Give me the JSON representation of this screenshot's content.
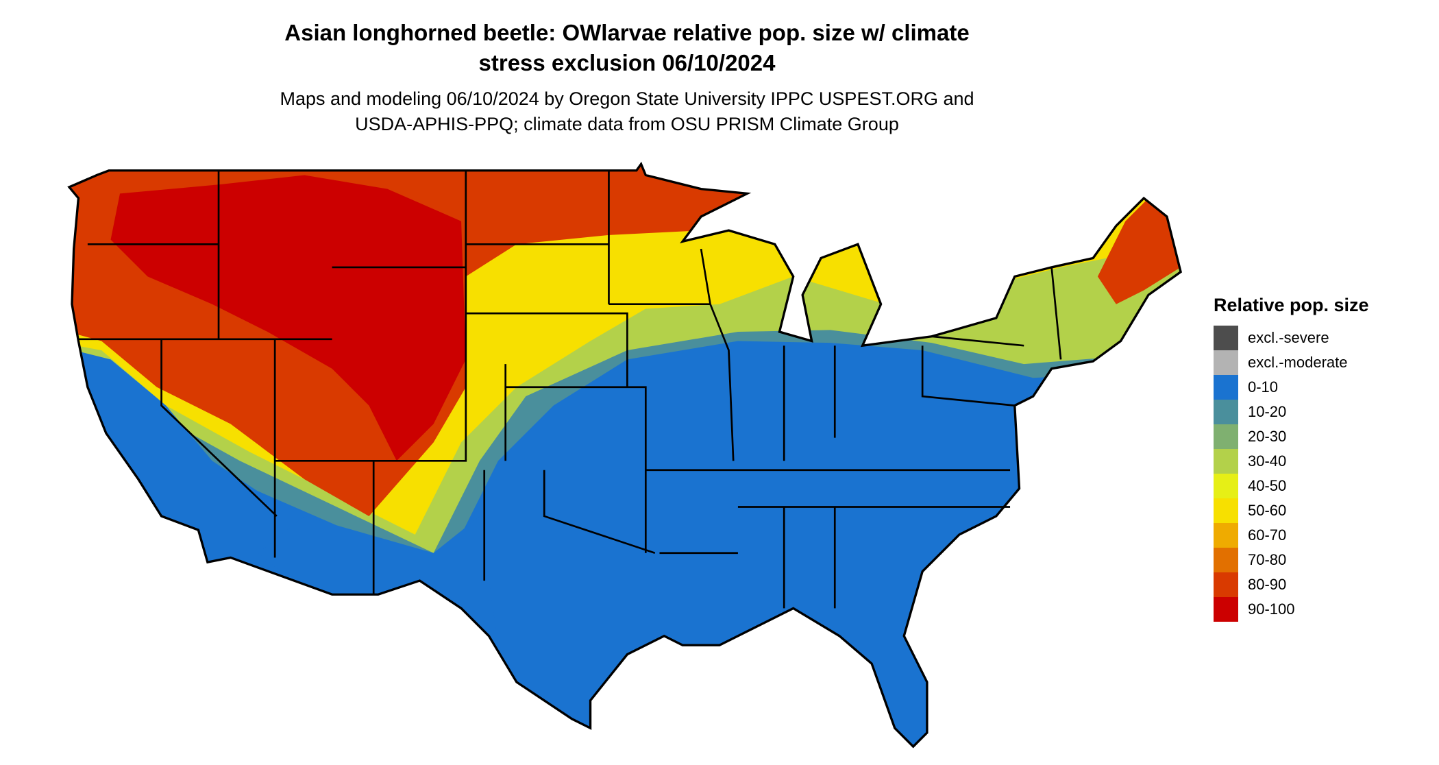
{
  "title": {
    "line1": "Asian longhorned beetle: OWlarvae relative pop. size w/ climate",
    "line2": "stress exclusion 06/10/2024"
  },
  "subtitle": {
    "line1": "Maps and modeling 06/10/2024 by Oregon State University IPPC USPEST.ORG and",
    "line2": "USDA-APHIS-PPQ; climate data from OSU PRISM Climate Group"
  },
  "chart_data": {
    "type": "heatmap",
    "title": "Asian longhorned beetle: OWlarvae relative pop. size w/ climate stress exclusion 06/10/2024",
    "region": "Contiguous United States",
    "legend": {
      "title": "Relative pop. size",
      "placement": "right",
      "items": [
        {
          "label": "excl.-severe",
          "color": "#4d4d4d"
        },
        {
          "label": "excl.-moderate",
          "color": "#b3b3b3"
        },
        {
          "label": "0-10",
          "color": "#1a73d0"
        },
        {
          "label": "10-20",
          "color": "#4a8f9c"
        },
        {
          "label": "20-30",
          "color": "#7fb070"
        },
        {
          "label": "30-40",
          "color": "#b3d14a"
        },
        {
          "label": "40-50",
          "color": "#e6ef16"
        },
        {
          "label": "50-60",
          "color": "#f7e000"
        },
        {
          "label": "60-70",
          "color": "#efab00"
        },
        {
          "label": "70-80",
          "color": "#e27000"
        },
        {
          "label": "80-90",
          "color": "#d93a00"
        },
        {
          "label": "90-100",
          "color": "#cc0000"
        }
      ]
    }
  }
}
